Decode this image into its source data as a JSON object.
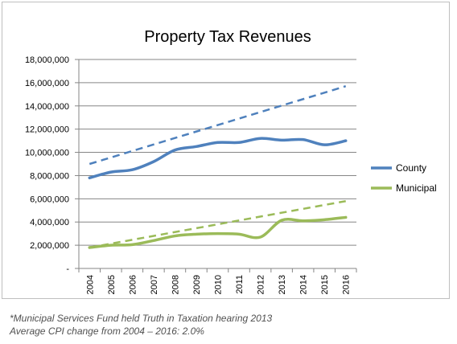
{
  "chart_data": {
    "type": "line",
    "title": "Property Tax Revenues",
    "xlabel": "",
    "ylabel": "",
    "categories": [
      "2004",
      "2005",
      "2006",
      "2007",
      "2008",
      "2009",
      "2010",
      "2011",
      "2012",
      "2013",
      "2014",
      "2015",
      "2016"
    ],
    "ylim": [
      0,
      18000000
    ],
    "yticks": [
      0,
      2000000,
      4000000,
      6000000,
      8000000,
      10000000,
      12000000,
      14000000,
      16000000,
      18000000
    ],
    "ytick_labels": [
      "-",
      "2,000,000",
      "4,000,000",
      "6,000,000",
      "8,000,000",
      "10,000,000",
      "12,000,000",
      "14,000,000",
      "16,000,000",
      "18,000,000"
    ],
    "grid": true,
    "legend_position": "right",
    "series": [
      {
        "name": "County",
        "color": "#4f81bd",
        "values": [
          7800000,
          8300000,
          8500000,
          9200000,
          10200000,
          10500000,
          10850000,
          10850000,
          11200000,
          11050000,
          11100000,
          10650000,
          11000000
        ]
      },
      {
        "name": "Municipal",
        "color": "#9bbb59",
        "values": [
          1800000,
          2000000,
          2050000,
          2400000,
          2800000,
          2950000,
          3000000,
          2950000,
          2700000,
          4150000,
          4100000,
          4200000,
          4400000
        ]
      }
    ],
    "trendlines": [
      {
        "series": "County",
        "color": "#4f81bd",
        "style": "dashed",
        "values": [
          9000000,
          15700000
        ]
      },
      {
        "series": "Municipal",
        "color": "#9bbb59",
        "style": "dashed",
        "values": [
          1800000,
          5800000
        ]
      }
    ]
  },
  "footnotes": [
    "*Municipal Services Fund held Truth in Taxation hearing 2013",
    "Average CPI change from 2004 – 2016: 2.0%"
  ]
}
